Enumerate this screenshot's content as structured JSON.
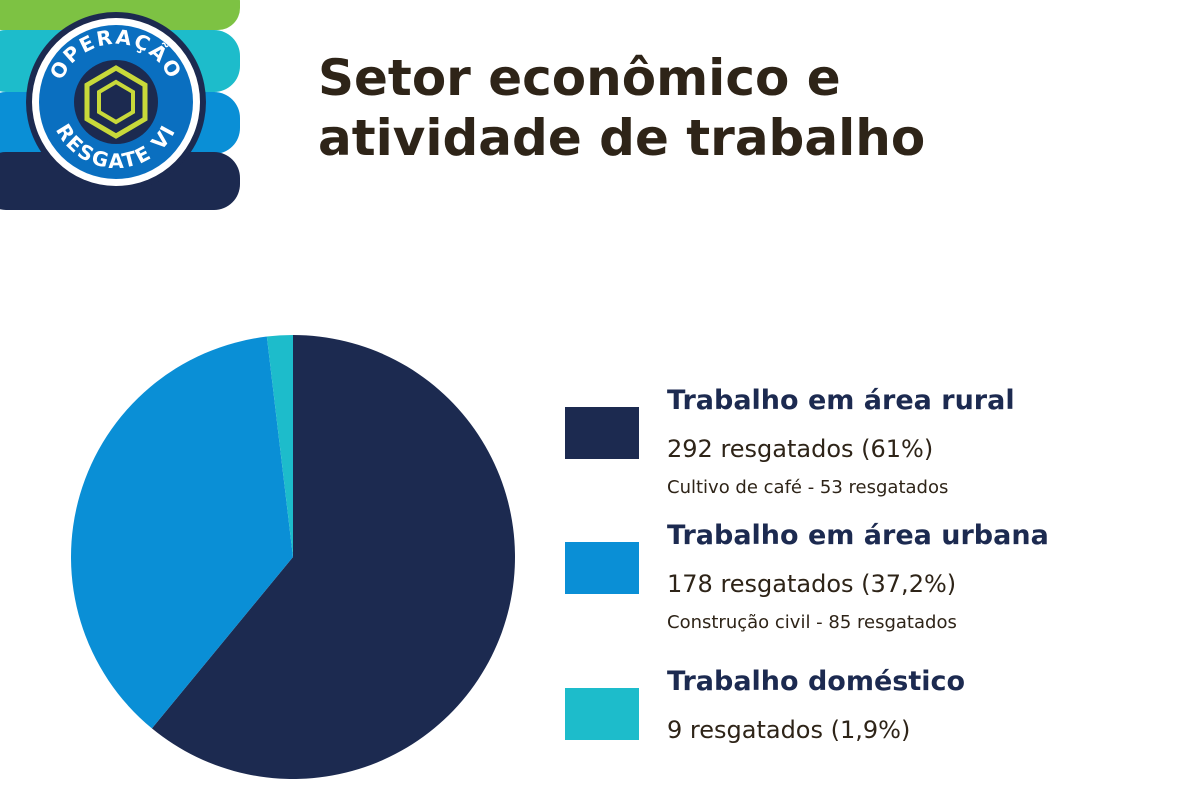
{
  "logo": {
    "top": "OPERAÇÃO",
    "bottom": "RESGATE VI"
  },
  "chart_data": {
    "type": "pie",
    "title": "Setor econômico e atividade de trabalho",
    "categories": [
      "Trabalho em área rural",
      "Trabalho em área urbana",
      "Trabalho doméstico"
    ],
    "values": [
      292,
      178,
      9
    ],
    "value_labels": [
      "292 resgatados (61%)",
      "178 resgatados (37,2%)",
      "9 resgatados (1,9%)"
    ],
    "notes": [
      "Cultivo de café - 53 resgatados",
      "Construção civil - 85 resgatados",
      null
    ],
    "colors": [
      "#1c2a50",
      "#0a8fd6",
      "#1dbccb"
    ]
  }
}
